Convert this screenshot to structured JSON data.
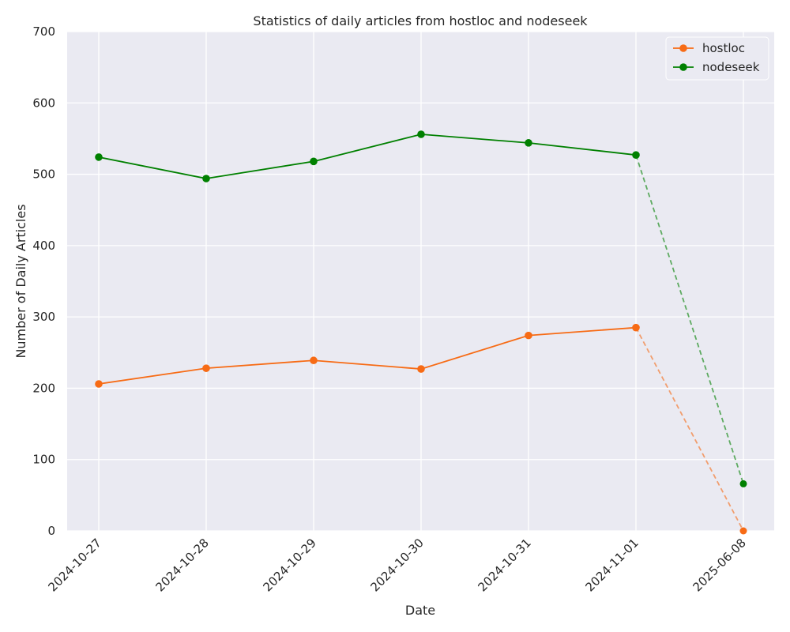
{
  "chart_data": {
    "type": "line",
    "title": "Statistics of daily articles from hostloc and nodeseek",
    "xlabel": "Date",
    "ylabel": "Number of Daily Articles",
    "categories": [
      "2024-10-27",
      "2024-10-28",
      "2024-10-29",
      "2024-10-30",
      "2024-10-31",
      "2024-11-01",
      "2025-06-08"
    ],
    "ylim": [
      0,
      700
    ],
    "yticks": [
      0,
      100,
      200,
      300,
      400,
      500,
      600,
      700
    ],
    "grid": true,
    "legend_position": "top-right",
    "series": [
      {
        "name": "hostloc",
        "color": "#f76b15",
        "values": [
          206,
          228,
          239,
          227,
          274,
          285,
          0
        ],
        "dashed_last_segment": true
      },
      {
        "name": "nodeseek",
        "color": "#008000",
        "values": [
          524,
          494,
          518,
          556,
          544,
          527,
          66
        ],
        "dashed_last_segment": true
      }
    ]
  }
}
